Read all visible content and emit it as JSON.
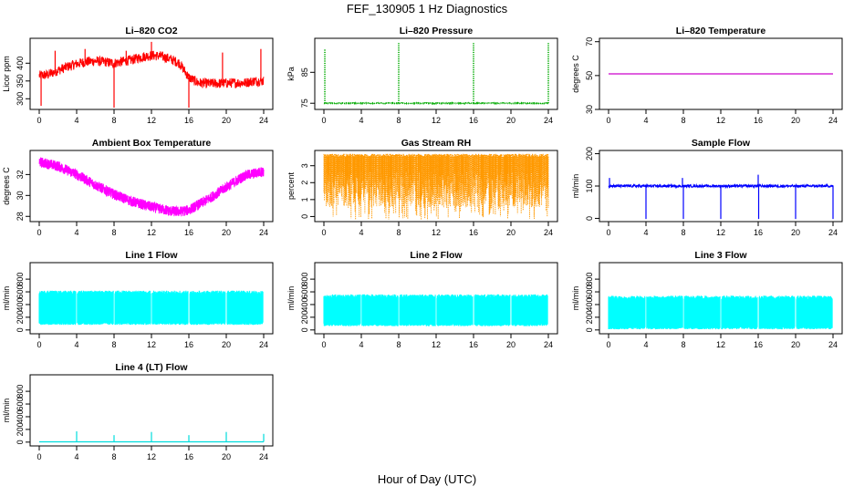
{
  "figure": {
    "title": "FEF_130905  1 Hz Diagnostics",
    "xlabel": "Hour of Day (UTC)"
  },
  "chart_data": [
    {
      "type": "line",
      "id": "co2",
      "title": "Li–820 CO2",
      "ylabel": "Licor ppm",
      "xlim": [
        0,
        24
      ],
      "xticks": [
        0,
        4,
        8,
        12,
        16,
        20,
        24
      ],
      "ylim": [
        270,
        470
      ],
      "yticks": [
        300,
        350,
        400
      ],
      "color": "#ff0000",
      "style": "noisy",
      "series": [
        {
          "x": [
            0,
            1,
            2,
            3,
            4,
            5,
            6,
            7,
            8,
            9,
            10,
            11,
            12,
            13,
            14,
            15,
            16,
            17,
            18,
            19,
            20,
            21,
            22,
            23,
            24
          ],
          "y": [
            365,
            368,
            380,
            390,
            398,
            404,
            406,
            404,
            400,
            405,
            410,
            418,
            422,
            420,
            412,
            400,
            360,
            345,
            343,
            343,
            344,
            345,
            345,
            350,
            350
          ]
        }
      ],
      "noise": 14,
      "spikes": [
        [
          0.2,
          280
        ],
        [
          1.7,
          435
        ],
        [
          4.9,
          440
        ],
        [
          8.0,
          275
        ],
        [
          9.3,
          435
        ],
        [
          12.0,
          460
        ],
        [
          16.0,
          275
        ],
        [
          19.6,
          430
        ],
        [
          23.7,
          440
        ]
      ]
    },
    {
      "type": "line",
      "id": "pressure",
      "title": "Li–820 Pressure",
      "ylabel": "kPa",
      "xlim": [
        0,
        24
      ],
      "xticks": [
        0,
        4,
        8,
        12,
        16,
        20,
        24
      ],
      "ylim": [
        73,
        96
      ],
      "yticks": [
        75,
        85
      ],
      "color": "#00aa00",
      "style": "dotted",
      "series": [
        {
          "x": [
            0,
            24
          ],
          "y": [
            75,
            75
          ]
        }
      ],
      "noise": 0.1,
      "spikes": [
        [
          0.1,
          92.5
        ],
        [
          8.0,
          94.5
        ],
        [
          16.0,
          94.5
        ],
        [
          24.0,
          94.5
        ]
      ]
    },
    {
      "type": "line",
      "id": "licor-temp",
      "title": "Li–820 Temperature",
      "ylabel": "degrees C",
      "xlim": [
        0,
        24
      ],
      "xticks": [
        0,
        4,
        8,
        12,
        16,
        20,
        24
      ],
      "ylim": [
        30,
        72
      ],
      "yticks": [
        30,
        50,
        70
      ],
      "color": "#cc00cc",
      "style": "line",
      "series": [
        {
          "x": [
            0,
            24
          ],
          "y": [
            51,
            51
          ]
        }
      ],
      "noise": 0,
      "spikes": []
    },
    {
      "type": "line",
      "id": "box-temp",
      "title": "Ambient Box Temperature",
      "ylabel": "degrees C",
      "xlim": [
        0,
        24
      ],
      "xticks": [
        0,
        4,
        8,
        12,
        16,
        20,
        24
      ],
      "ylim": [
        27.5,
        34.3
      ],
      "yticks": [
        28,
        30,
        32
      ],
      "color": "#ff00ff",
      "style": "band",
      "series": [
        {
          "x": [
            0,
            2,
            4,
            6,
            8,
            10,
            12,
            14,
            15,
            16,
            18,
            20,
            22,
            24
          ],
          "y": [
            33.2,
            32.8,
            32.0,
            31.0,
            30.1,
            29.4,
            28.9,
            28.5,
            28.45,
            28.6,
            29.6,
            30.8,
            31.9,
            32.3
          ]
        }
      ],
      "band": 1.0,
      "spikes": []
    },
    {
      "type": "line",
      "id": "rh",
      "title": "Gas Stream RH",
      "ylabel": "percent",
      "xlim": [
        0,
        24
      ],
      "xticks": [
        0,
        4,
        8,
        12,
        16,
        20,
        24
      ],
      "ylim": [
        -0.3,
        3.9
      ],
      "yticks": [
        0,
        1,
        2,
        3
      ],
      "color": "#ff9900",
      "style": "bars",
      "series": [
        {
          "x": [
            0,
            24
          ],
          "y": [
            3.6,
            3.6
          ]
        }
      ],
      "spikes": []
    },
    {
      "type": "line",
      "id": "sample-flow",
      "title": "Sample Flow",
      "ylabel": "ml/min",
      "xlim": [
        0,
        24
      ],
      "xticks": [
        0,
        4,
        8,
        12,
        16,
        20,
        24
      ],
      "ylim": [
        -10,
        210
      ],
      "yticks": [
        0,
        100,
        200
      ],
      "color": "#0000ff",
      "style": "noisy",
      "series": [
        {
          "x": [
            0,
            24
          ],
          "y": [
            100,
            100
          ]
        }
      ],
      "noise": 4,
      "spikes": [
        [
          0.1,
          125
        ],
        [
          4.0,
          -2
        ],
        [
          7.9,
          125
        ],
        [
          8.0,
          -2
        ],
        [
          12.0,
          -2
        ],
        [
          16.0,
          135
        ],
        [
          16.05,
          -2
        ],
        [
          20.0,
          -2
        ],
        [
          24.0,
          -2
        ]
      ]
    },
    {
      "type": "line",
      "id": "line1-flow",
      "title": "Line 1 Flow",
      "ylabel": "ml/min",
      "xlim": [
        0,
        24
      ],
      "xticks": [
        0,
        4,
        8,
        12,
        16,
        20,
        24
      ],
      "ylim": [
        -60,
        1060
      ],
      "yticks": [
        0,
        200,
        400,
        600,
        800
      ],
      "color": "#00ffff",
      "style": "block",
      "series": [
        {
          "x": [
            0,
            24
          ],
          "y": [
            600,
            600
          ]
        }
      ],
      "low": 80,
      "high": 620,
      "gaps": [
        4,
        8,
        12,
        16,
        20,
        24
      ],
      "spikes": []
    },
    {
      "type": "line",
      "id": "line2-flow",
      "title": "Line 2 Flow",
      "ylabel": "ml/min",
      "xlim": [
        0,
        24
      ],
      "xticks": [
        0,
        4,
        8,
        12,
        16,
        20,
        24
      ],
      "ylim": [
        -60,
        1060
      ],
      "yticks": [
        0,
        200,
        400,
        600,
        800
      ],
      "color": "#00ffff",
      "style": "block",
      "series": [
        {
          "x": [
            0,
            24
          ],
          "y": [
            540,
            540
          ]
        }
      ],
      "low": 60,
      "high": 560,
      "gaps": [
        4,
        8,
        12,
        16,
        20,
        24
      ],
      "spikes": []
    },
    {
      "type": "line",
      "id": "line3-flow",
      "title": "Line 3 Flow",
      "ylabel": "ml/min",
      "xlim": [
        0,
        24
      ],
      "xticks": [
        0,
        4,
        8,
        12,
        16,
        20,
        24
      ],
      "ylim": [
        -60,
        1060
      ],
      "yticks": [
        0,
        200,
        400,
        600,
        800
      ],
      "color": "#00ffff",
      "style": "block",
      "series": [
        {
          "x": [
            0,
            24
          ],
          "y": [
            520,
            520
          ]
        }
      ],
      "low": 10,
      "high": 540,
      "gaps": [
        4,
        8,
        12,
        16,
        20,
        24
      ],
      "spikes": []
    },
    {
      "type": "line",
      "id": "line4-flow",
      "title": "Line 4 (LT) Flow",
      "ylabel": "ml/min",
      "xlim": [
        0,
        24
      ],
      "xticks": [
        0,
        4,
        8,
        12,
        16,
        20,
        24
      ],
      "ylim": [
        -60,
        1060
      ],
      "yticks": [
        0,
        200,
        400,
        600,
        800
      ],
      "color": "#00dddd",
      "style": "line",
      "series": [
        {
          "x": [
            0,
            24
          ],
          "y": [
            5,
            5
          ]
        }
      ],
      "noise": 0,
      "spikes": [
        [
          4.0,
          170
        ],
        [
          8.0,
          110
        ],
        [
          12.0,
          160
        ],
        [
          16.0,
          110
        ],
        [
          20.0,
          160
        ],
        [
          24.0,
          130
        ]
      ]
    }
  ]
}
